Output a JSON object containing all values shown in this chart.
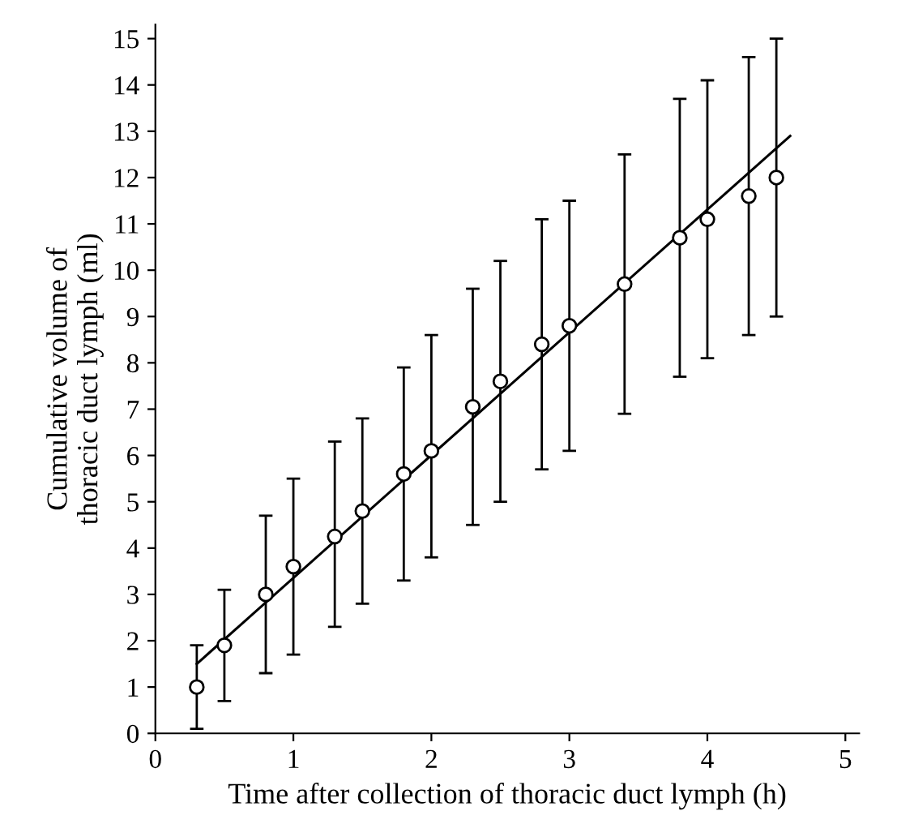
{
  "chart_data": {
    "type": "scatter",
    "xlabel": "Time after collection of thoracic duct lymph (h)",
    "ylabel": "Cumulative volume of\nthoracic duct lymph (ml)",
    "xlim": [
      0,
      5.1
    ],
    "ylim": [
      0,
      15.3
    ],
    "xticks": [
      0,
      1,
      2,
      3,
      4,
      5
    ],
    "yticks": [
      0,
      1,
      2,
      3,
      4,
      5,
      6,
      7,
      8,
      9,
      10,
      11,
      12,
      13,
      14,
      15
    ],
    "grid": false,
    "series": [
      {
        "marker": "circle",
        "color": "#000000",
        "x": [
          0.3,
          0.5,
          0.8,
          1.0,
          1.3,
          1.5,
          1.8,
          2.0,
          2.3,
          2.5,
          2.8,
          3.0,
          3.4,
          3.8,
          4.0,
          4.3,
          4.5
        ],
        "values": [
          1.0,
          1.9,
          3.0,
          3.6,
          4.25,
          4.8,
          5.6,
          6.1,
          7.05,
          7.6,
          8.4,
          8.8,
          9.7,
          10.7,
          11.1,
          11.6,
          12.0
        ],
        "errors": [
          [
            0.1,
            1.9
          ],
          [
            0.7,
            3.1
          ],
          [
            1.3,
            4.7
          ],
          [
            1.7,
            5.5
          ],
          [
            2.3,
            6.3
          ],
          [
            2.8,
            6.8
          ],
          [
            3.3,
            7.9
          ],
          [
            3.8,
            8.6
          ],
          [
            4.5,
            9.6
          ],
          [
            5.0,
            10.2
          ],
          [
            5.7,
            11.1
          ],
          [
            6.1,
            11.5
          ],
          [
            6.9,
            12.5
          ],
          [
            7.7,
            13.7
          ],
          [
            8.1,
            14.1
          ],
          [
            8.6,
            14.6
          ],
          [
            9.0,
            15.0
          ]
        ]
      },
      {
        "type": "line",
        "marker": "none",
        "color": "#000000",
        "x": [
          0.3,
          4.6
        ],
        "values": [
          1.5,
          12.9
        ]
      }
    ]
  }
}
